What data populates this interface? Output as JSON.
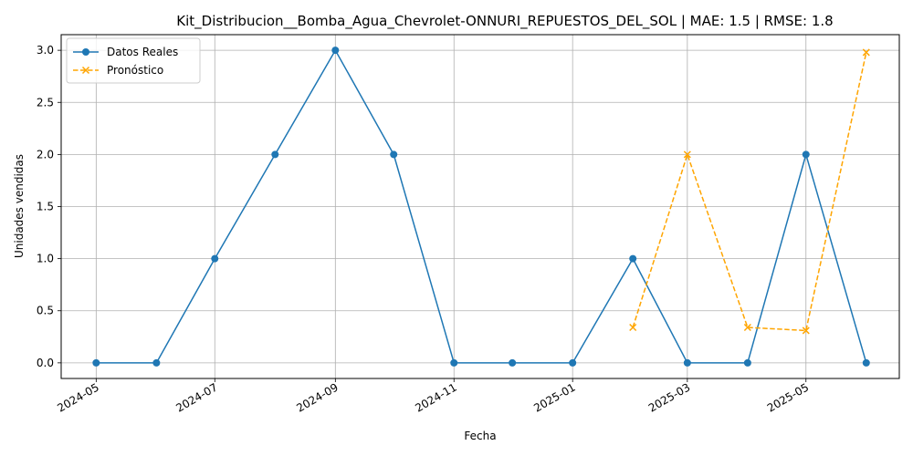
{
  "chart_data": {
    "type": "line",
    "title": "Kit_Distribucion__Bomba_Agua_Chevrolet-ONNURI_REPUESTOS_DEL_SOL | MAE: 1.5 | RMSE: 1.8",
    "xlabel": "Fecha",
    "ylabel": "Unidades vendidas",
    "xlim": [
      "2024-04-13",
      "2025-06-18"
    ],
    "ylim": [
      -0.15,
      3.15
    ],
    "grid": true,
    "legend_position": "top-left",
    "x_ticks": [
      {
        "date": "2024-05-01",
        "label": "2024-05"
      },
      {
        "date": "2024-07-01",
        "label": "2024-07"
      },
      {
        "date": "2024-09-01",
        "label": "2024-09"
      },
      {
        "date": "2024-11-01",
        "label": "2024-11"
      },
      {
        "date": "2025-01-01",
        "label": "2025-01"
      },
      {
        "date": "2025-03-01",
        "label": "2025-03"
      },
      {
        "date": "2025-05-01",
        "label": "2025-05"
      }
    ],
    "y_ticks": [
      {
        "value": 0.0,
        "label": "0.0"
      },
      {
        "value": 0.5,
        "label": "0.5"
      },
      {
        "value": 1.0,
        "label": "1.0"
      },
      {
        "value": 1.5,
        "label": "1.5"
      },
      {
        "value": 2.0,
        "label": "2.0"
      },
      {
        "value": 2.5,
        "label": "2.5"
      },
      {
        "value": 3.0,
        "label": "3.0"
      }
    ],
    "series": [
      {
        "name": "Datos Reales",
        "color": "#1f77b4",
        "marker": "circle",
        "line_style": "solid",
        "x": [
          "2024-05-01",
          "2024-06-01",
          "2024-07-01",
          "2024-08-01",
          "2024-09-01",
          "2024-10-01",
          "2024-11-01",
          "2024-12-01",
          "2025-01-01",
          "2025-02-01",
          "2025-03-01",
          "2025-04-01",
          "2025-05-01",
          "2025-06-01"
        ],
        "y": [
          0,
          0,
          1,
          2,
          3,
          2,
          0,
          0,
          0,
          1,
          0,
          0,
          2,
          0
        ]
      },
      {
        "name": "Pronóstico",
        "color": "#ffa500",
        "marker": "x",
        "line_style": "dashed",
        "x": [
          "2025-02-01",
          "2025-03-01",
          "2025-04-01",
          "2025-05-01",
          "2025-06-01"
        ],
        "y": [
          0.34,
          2.0,
          0.34,
          0.31,
          2.98
        ]
      }
    ]
  }
}
